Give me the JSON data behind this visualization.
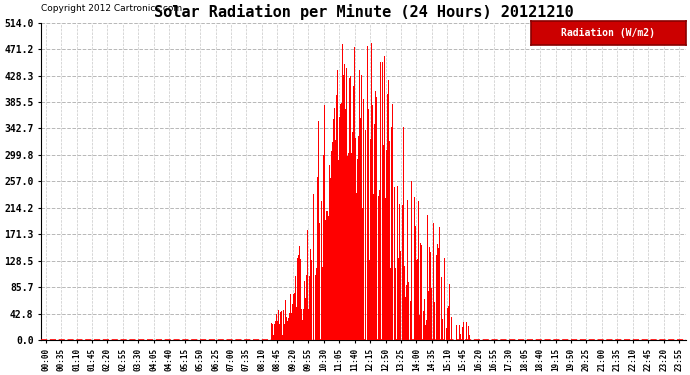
{
  "title": "Solar Radiation per Minute (24 Hours) 20121210",
  "copyright_text": "Copyright 2012 Cartronics.com",
  "legend_label": "Radiation (W/m2)",
  "yticks": [
    0.0,
    42.8,
    85.7,
    128.5,
    171.3,
    214.2,
    257.0,
    299.8,
    342.7,
    385.5,
    428.3,
    471.2,
    514.0
  ],
  "ymax": 514.0,
  "bar_color": "#ff0000",
  "background_color": "#ffffff",
  "grid_color": "#b0b0b0",
  "title_fontsize": 11,
  "copyright_fontsize": 6.5,
  "legend_bg": "#cc0000",
  "legend_text_color": "#ffffff",
  "tick_interval_minutes": 35,
  "total_minutes": 1440,
  "sunrise_minute": 510,
  "sunset_minute": 960
}
